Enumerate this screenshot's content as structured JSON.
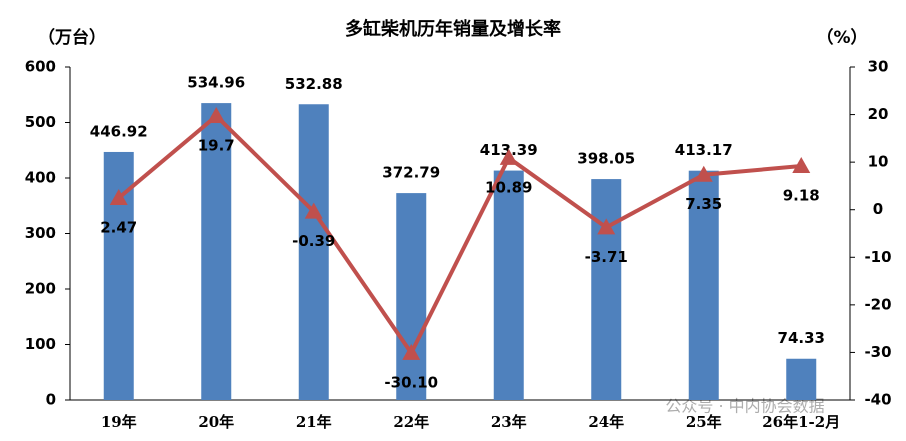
{
  "chart_data": {
    "type": "combo",
    "title": "多缸柴机历年销量及增长率",
    "y_label": "（万台）",
    "y2_label": "（%）",
    "watermark": "公众号 · 中内协会数据",
    "categories": [
      "19年",
      "20年",
      "21年",
      "22年",
      "23年",
      "24年",
      "25年",
      "26年1-2月"
    ],
    "series": [
      {
        "type": "bar",
        "color": "#4f81bd",
        "values": [
          446.92,
          534.96,
          532.88,
          372.79,
          413.39,
          398.05,
          413.17,
          74.33
        ]
      },
      {
        "type": "line",
        "axis": "y2",
        "color": "#c0504d",
        "values": [
          2.47,
          19.7,
          -0.39,
          -30.1,
          10.89,
          -3.71,
          7.35,
          9.18
        ],
        "value_labels": [
          "2.47",
          "19.7",
          "-0.39",
          "-30.10",
          "10.89",
          "-3.71",
          "7.35",
          "9.18"
        ]
      }
    ],
    "ylim": [
      0,
      600
    ],
    "yticks": [
      0,
      100,
      200,
      300,
      400,
      500,
      600
    ],
    "y2lim": [
      -40,
      30
    ],
    "y2ticks": [
      -40,
      -30,
      -20,
      -10,
      0,
      10,
      20,
      30
    ]
  }
}
